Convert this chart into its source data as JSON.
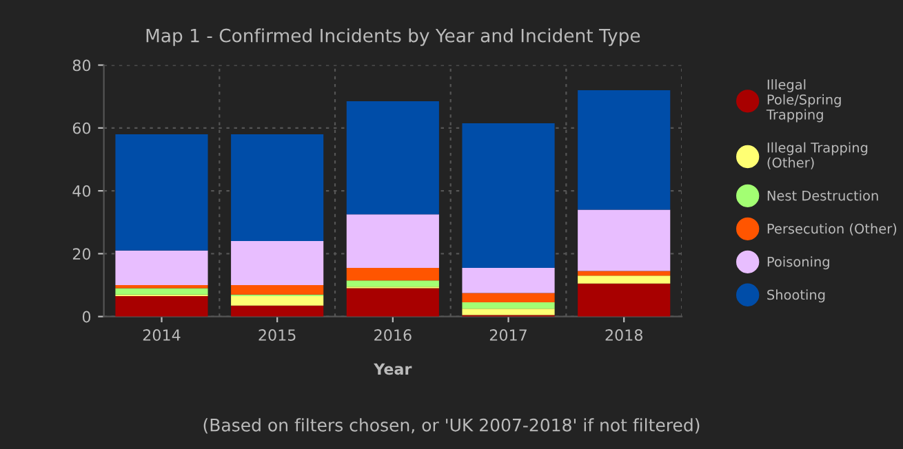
{
  "chart_data": {
    "type": "bar",
    "stacked": true,
    "title": "Map 1 - Confirmed Incidents by Year and Incident Type",
    "xlabel": "Year",
    "categories": [
      "2014",
      "2015",
      "2016",
      "2017",
      "2018"
    ],
    "series": [
      {
        "name": "Illegal Pole/Spring Trapping",
        "color": "#a80000",
        "values": [
          6.5,
          3.5,
          9,
          0.5,
          10.5
        ]
      },
      {
        "name": "Illegal Trapping (Other)",
        "color": "#ffff73",
        "values": [
          0.5,
          3,
          0.5,
          2,
          2.5
        ]
      },
      {
        "name": "Nest Destruction",
        "color": "#a3ff73",
        "values": [
          2,
          0.5,
          2,
          2,
          0
        ]
      },
      {
        "name": "Persecution (Other)",
        "color": "#ff5500",
        "values": [
          1,
          3,
          4,
          3,
          1.5
        ]
      },
      {
        "name": "Poisoning",
        "color": "#e8beff",
        "values": [
          11,
          14,
          17,
          8,
          19.5
        ]
      },
      {
        "name": "Shooting",
        "color": "#004da8",
        "values": [
          37,
          34,
          36,
          46,
          38
        ]
      }
    ],
    "ylim": [
      0,
      80
    ],
    "yticks": [
      0,
      20,
      40,
      60,
      80
    ],
    "grid": true,
    "legend": "right",
    "annotations": [
      "(Based on filters chosen, or 'UK 2007-2018' if not filtered)"
    ]
  }
}
